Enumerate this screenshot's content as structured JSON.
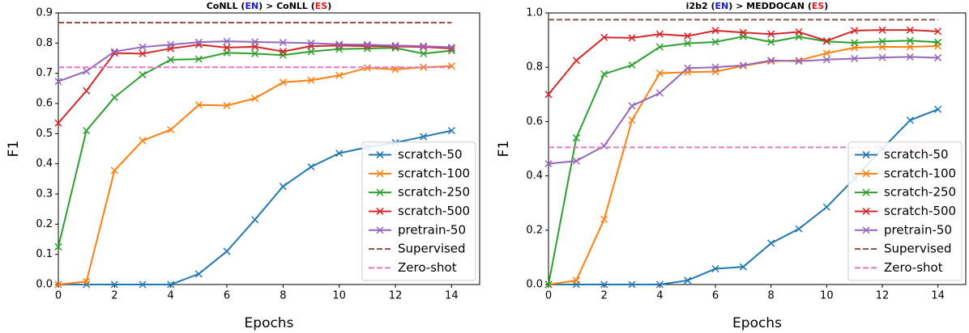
{
  "chart_data": [
    {
      "type": "line",
      "title": [
        {
          "text": "CoNLL (",
          "color": "#000000"
        },
        {
          "text": "EN",
          "color": "#1a1ad6"
        },
        {
          "text": ") > CoNLL (",
          "color": "#000000"
        },
        {
          "text": "ES",
          "color": "#e01b1b"
        },
        {
          "text": ")",
          "color": "#000000"
        }
      ],
      "x_label": "Epochs",
      "y_label": "F1",
      "x": [
        0,
        1,
        2,
        3,
        4,
        5,
        6,
        7,
        8,
        9,
        10,
        11,
        12,
        13,
        14
      ],
      "xlim": [
        0,
        15
      ],
      "ylim": [
        0,
        0.9
      ],
      "xticks": [
        0,
        2,
        4,
        6,
        8,
        10,
        12,
        14
      ],
      "yticks": [
        {
          "value": 0,
          "label": "0.0"
        },
        0.1,
        0.2,
        0.3,
        0.4,
        0.5,
        0.6,
        0.7,
        0.8,
        0.9
      ],
      "legend": "lower right",
      "series": [
        {
          "name": "scratch-50",
          "color": "#1f77b4",
          "values": [
            0,
            0,
            0,
            0,
            0,
            0.035,
            0.11,
            0.215,
            0.325,
            0.39,
            0.435,
            0.455,
            0.47,
            0.49,
            0.51
          ]
        },
        {
          "name": "scratch-100",
          "color": "#ff7f0e",
          "values": [
            0,
            0.01,
            0.378,
            0.477,
            0.513,
            0.595,
            0.593,
            0.617,
            0.67,
            0.677,
            0.693,
            0.718,
            0.713,
            0.72,
            0.724
          ]
        },
        {
          "name": "scratch-250",
          "color": "#2ca02c",
          "values": [
            0.125,
            0.51,
            0.62,
            0.695,
            0.745,
            0.747,
            0.768,
            0.765,
            0.76,
            0.772,
            0.78,
            0.782,
            0.784,
            0.765,
            0.775
          ]
        },
        {
          "name": "scratch-500",
          "color": "#d62728",
          "values": [
            0.535,
            0.642,
            0.767,
            0.765,
            0.782,
            0.795,
            0.785,
            0.788,
            0.772,
            0.79,
            0.792,
            0.79,
            0.789,
            0.787,
            0.782
          ]
        },
        {
          "name": "pretrain-50",
          "color": "#9467bd",
          "values": [
            0.673,
            0.707,
            0.772,
            0.787,
            0.795,
            0.803,
            0.806,
            0.804,
            0.802,
            0.8,
            0.796,
            0.795,
            0.792,
            0.79,
            0.786
          ]
        },
        {
          "name": "Supervised",
          "color": "#8c564b",
          "y": 0.868,
          "dashed": true
        },
        {
          "name": "Zero-shot",
          "color": "#e377c2",
          "y": 0.72,
          "dashed": true
        }
      ]
    },
    {
      "type": "line",
      "title": [
        {
          "text": "i2b2 (",
          "color": "#000000"
        },
        {
          "text": "EN",
          "color": "#1a1ad6"
        },
        {
          "text": ") > MEDDOCAN (",
          "color": "#000000"
        },
        {
          "text": "ES",
          "color": "#e01b1b"
        },
        {
          "text": ")",
          "color": "#000000"
        }
      ],
      "x_label": "Epochs",
      "y_label": "F1",
      "x": [
        0,
        1,
        2,
        3,
        4,
        5,
        6,
        7,
        8,
        9,
        10,
        11,
        12,
        13,
        14
      ],
      "xlim": [
        0,
        15
      ],
      "ylim": [
        0,
        1.0
      ],
      "xticks": [
        0,
        2,
        4,
        6,
        8,
        10,
        12,
        14
      ],
      "yticks": [
        {
          "value": 0,
          "label": "0.0"
        },
        0.2,
        0.4,
        0.6,
        0.8,
        {
          "value": 1,
          "label": "1.0"
        }
      ],
      "legend": "lower right",
      "series": [
        {
          "name": "scratch-50",
          "color": "#1f77b4",
          "values": [
            0,
            0,
            0,
            0,
            0,
            0.015,
            0.058,
            0.065,
            0.152,
            0.205,
            0.285,
            0.39,
            0.5,
            0.605,
            0.645
          ]
        },
        {
          "name": "scratch-100",
          "color": "#ff7f0e",
          "values": [
            0,
            0.015,
            0.24,
            0.605,
            0.778,
            0.782,
            0.784,
            0.805,
            0.822,
            0.825,
            0.852,
            0.872,
            0.875,
            0.875,
            0.878
          ]
        },
        {
          "name": "scratch-250",
          "color": "#2ca02c",
          "values": [
            0,
            0.54,
            0.775,
            0.808,
            0.875,
            0.888,
            0.893,
            0.913,
            0.893,
            0.912,
            0.895,
            0.89,
            0.895,
            0.898,
            0.892
          ]
        },
        {
          "name": "scratch-500",
          "color": "#d62728",
          "values": [
            0.7,
            0.825,
            0.91,
            0.908,
            0.922,
            0.915,
            0.935,
            0.928,
            0.922,
            0.93,
            0.897,
            0.935,
            0.937,
            0.937,
            0.932
          ]
        },
        {
          "name": "pretrain-50",
          "color": "#9467bd",
          "values": [
            0.445,
            0.455,
            0.51,
            0.658,
            0.705,
            0.797,
            0.8,
            0.807,
            0.825,
            0.822,
            0.828,
            0.832,
            0.836,
            0.838,
            0.835
          ]
        },
        {
          "name": "Supervised",
          "color": "#8c564b",
          "y": 0.975,
          "dashed": true
        },
        {
          "name": "Zero-shot",
          "color": "#e377c2",
          "y": 0.505,
          "dashed": true
        }
      ]
    }
  ]
}
